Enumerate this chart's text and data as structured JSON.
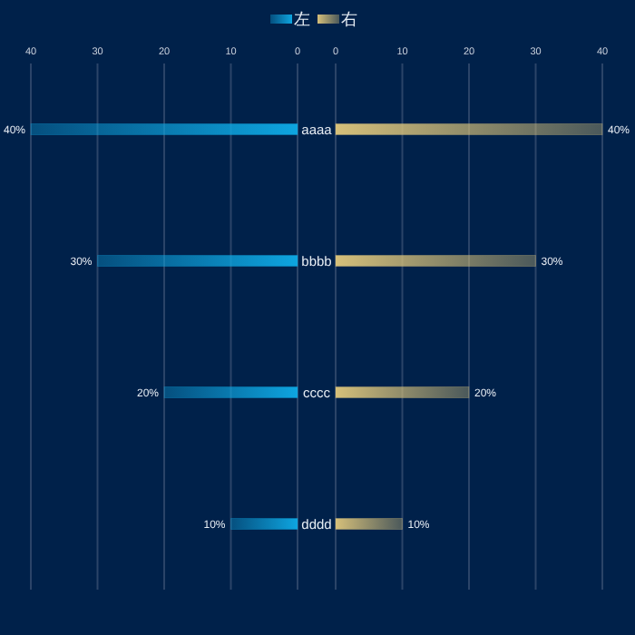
{
  "chart_data": [
    {
      "type": "bar",
      "orientation": "horizontal",
      "categories": [
        "aaaa",
        "bbbb",
        "cccc",
        "dddd"
      ],
      "series": [
        {
          "name": "左",
          "color": "#0ea5e0",
          "values": [
            40,
            30,
            20,
            10
          ],
          "value_labels": [
            "40%",
            "30%",
            "20%",
            "10%"
          ]
        }
      ],
      "xlim": [
        40,
        0
      ],
      "xticks": [
        40,
        30,
        20,
        10,
        0
      ],
      "grid": "x",
      "legend": "top"
    },
    {
      "type": "bar",
      "orientation": "horizontal",
      "categories": [
        null,
        null,
        null,
        null
      ],
      "series": [
        {
          "name": "右",
          "color": "#d6c07a",
          "values": [
            40,
            30,
            20,
            10
          ],
          "value_labels": [
            "40%",
            "30%",
            "20%",
            "10%"
          ]
        }
      ],
      "xlim": [
        0,
        40
      ],
      "xticks": [
        0,
        10,
        20,
        30,
        40
      ],
      "grid": "x",
      "legend": "top",
      "tick_labels": "x"
    }
  ]
}
